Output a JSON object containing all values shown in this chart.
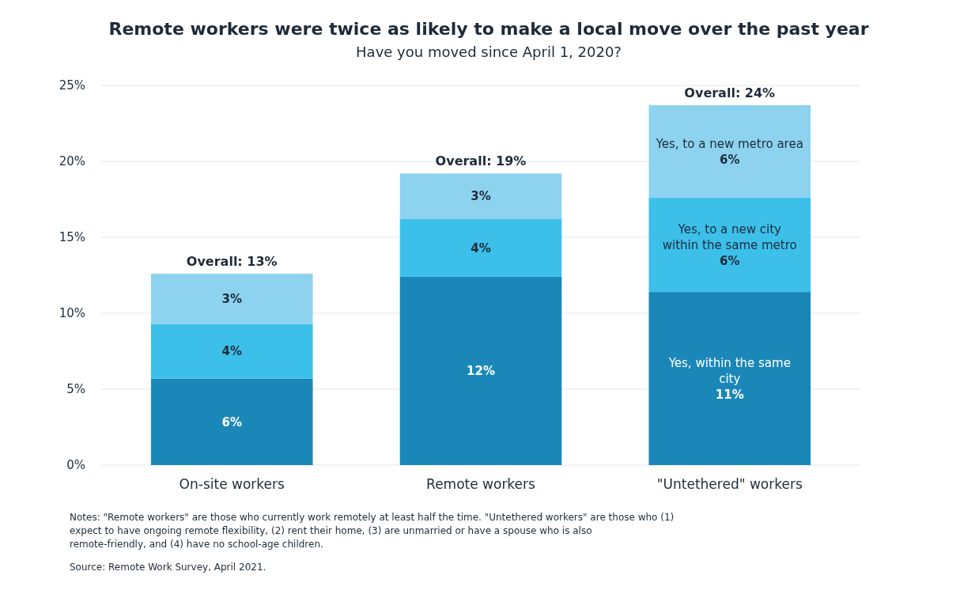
{
  "chart_data": {
    "type": "bar",
    "stacked": true,
    "title": "Remote workers were twice as likely to make a local move over the past year",
    "subtitle": "Have you moved since April 1, 2020?",
    "categories": [
      "On-site workers",
      "Remote workers",
      "\"Untethered\" workers"
    ],
    "series": [
      {
        "name": "Yes, within the same city",
        "color": "#1a87b8",
        "values": [
          5.7,
          12.4,
          11.4
        ],
        "value_labels": [
          "6%",
          "12%",
          "11%"
        ]
      },
      {
        "name": "Yes, to a new city within the same metro",
        "color": "#3cc0ea",
        "values": [
          3.6,
          3.8,
          6.2
        ],
        "value_labels": [
          "4%",
          "4%",
          "6%"
        ]
      },
      {
        "name": "Yes, to a new metro area",
        "color": "#8dd3ef",
        "values": [
          3.3,
          3.0,
          6.1
        ],
        "value_labels": [
          "3%",
          "3%",
          "6%"
        ]
      }
    ],
    "totals": [
      "Overall: 13%",
      "Overall: 19%",
      "Overall: 24%"
    ],
    "ylim": [
      0,
      25
    ],
    "yticks": [
      {
        "value": 0,
        "label": "0%"
      },
      {
        "value": 5,
        "label": "5%"
      },
      {
        "value": 10,
        "label": "10%"
      },
      {
        "value": 15,
        "label": "15%"
      },
      {
        "value": 20,
        "label": "20%"
      },
      {
        "value": 25,
        "label": "25%"
      }
    ],
    "grid": "y",
    "legend": false,
    "annotations": [
      "Notes: \"Remote workers\" are those who currently work remotely at least half the time. \"Untethered workers\" are those who (1) expect to have ongoing remote flexibility, (2) rent their home, (3) are unmarried or have a spouse who is also remote-friendly, and (4) have no school-age children.",
      "Source: Remote Work Survey, April 2021."
    ]
  }
}
